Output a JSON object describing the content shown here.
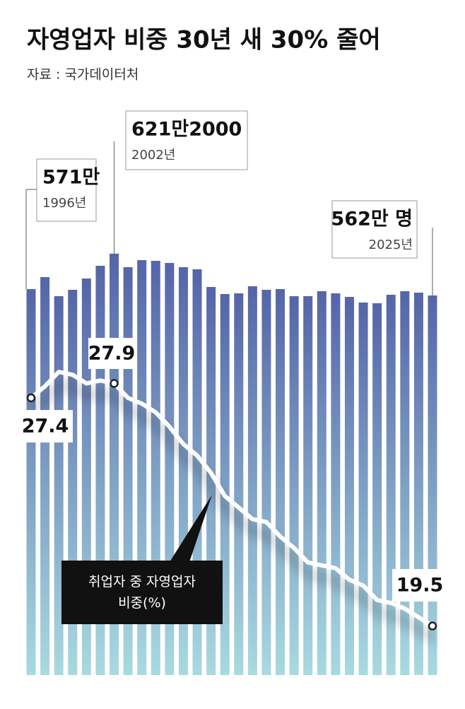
{
  "chart_data": {
    "type": "bar",
    "title": "자영업자 비중 30년 새 30% 줄어",
    "source": "자료 : 국가데이터처",
    "categories": [
      "1996년",
      null,
      null,
      null,
      null,
      null,
      "2002년",
      null,
      null,
      null,
      null,
      null,
      null,
      null,
      null,
      null,
      null,
      null,
      null,
      null,
      null,
      null,
      null,
      null,
      null,
      null,
      null,
      null,
      null,
      "2025년"
    ],
    "ylim": [
      25,
      650
    ],
    "y2lim": [
      17.8,
      33.1
    ],
    "series": [
      {
        "type": "bar",
        "color": "#5565a8",
        "values": [
          571,
          588,
          561,
          570,
          586,
          604,
          621.2,
          602,
          612,
          611,
          608,
          602,
          599,
          574,
          564,
          565,
          575,
          570,
          571,
          561,
          561,
          568,
          565,
          560,
          552,
          551,
          563,
          568,
          566,
          562
        ],
        "value_labels": [
          "571만",
          null,
          null,
          null,
          null,
          null,
          "621만2000",
          null,
          null,
          null,
          null,
          null,
          null,
          null,
          null,
          null,
          null,
          null,
          null,
          null,
          null,
          null,
          null,
          null,
          null,
          null,
          null,
          null,
          null,
          "562만 명"
        ]
      },
      {
        "type": "line",
        "name": "취업자 중 자영업자 비중(%)",
        "color": "#ffffff",
        "axis": "y2",
        "values": [
          27.4,
          27.8,
          28.3,
          28.2,
          27.9,
          28.0,
          27.9,
          27.4,
          27.2,
          26.9,
          26.4,
          25.8,
          25.4,
          24.8,
          24.0,
          23.6,
          23.2,
          23.1,
          22.6,
          22.2,
          21.7,
          21.6,
          21.5,
          21.1,
          20.9,
          20.4,
          20.3,
          20.1,
          19.8,
          19.5
        ]
      }
    ]
  }
}
